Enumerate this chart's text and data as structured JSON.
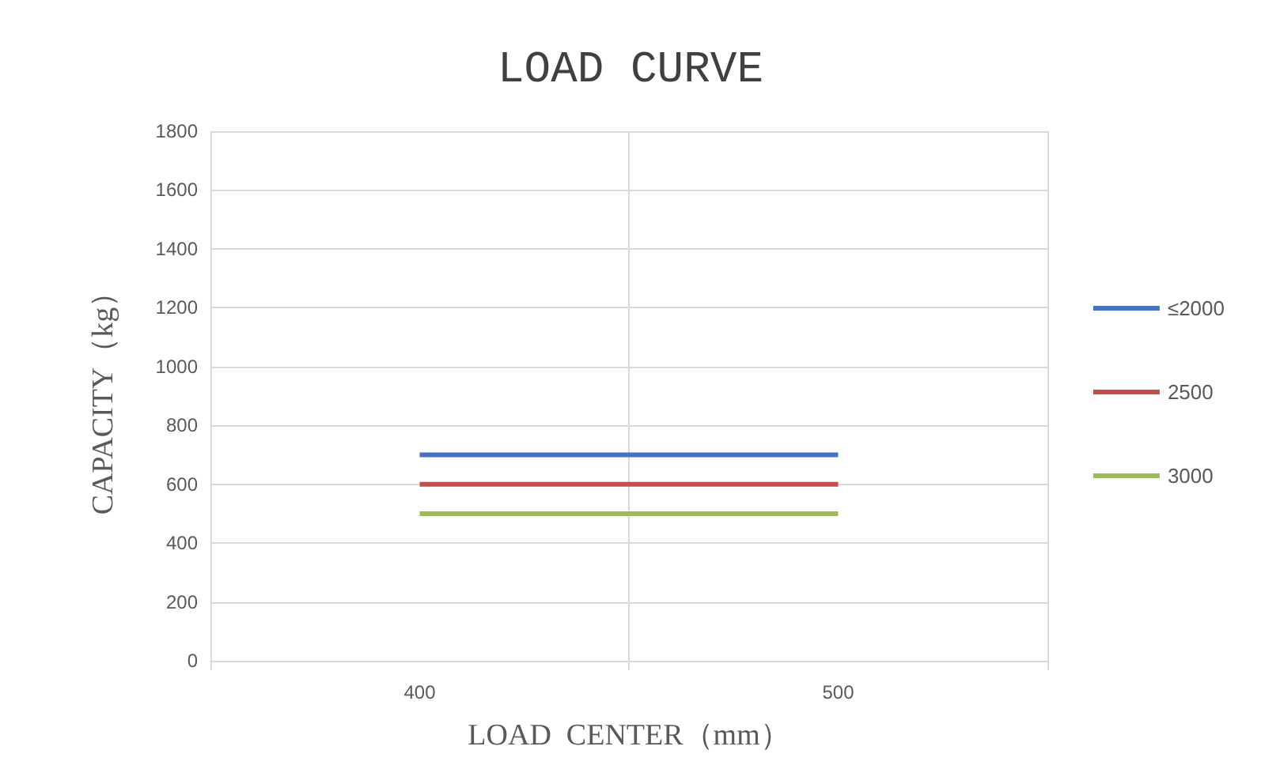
{
  "chart_data": {
    "type": "line",
    "title": "LOAD CURVE",
    "xlabel": "LOAD  CENTER（mm）",
    "ylabel": "CAPACITY（kg）",
    "categories": [
      "400",
      "500"
    ],
    "series": [
      {
        "name": "≤2000",
        "color": "#4472c4",
        "values": [
          700,
          700
        ]
      },
      {
        "name": "2500",
        "color": "#c0504d",
        "values": [
          600,
          600
        ]
      },
      {
        "name": "3000",
        "color": "#9bbb59",
        "values": [
          500,
          500
        ]
      }
    ],
    "ylim": [
      0,
      1800
    ],
    "yticks": [
      0,
      200,
      400,
      600,
      800,
      1000,
      1200,
      1400,
      1600,
      1800
    ],
    "grid": true,
    "legend": "right",
    "marker": "none",
    "line_style": "solid"
  }
}
